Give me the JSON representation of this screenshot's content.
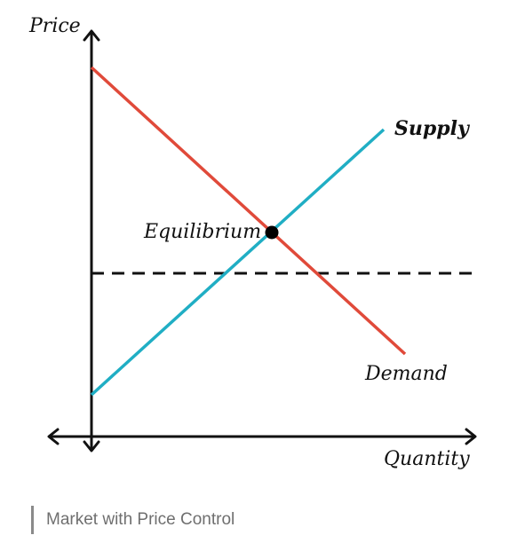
{
  "diagram": {
    "y_axis_label": "Price",
    "x_axis_label": "Quantity",
    "supply_label": "Supply",
    "demand_label": "Demand",
    "equilibrium_label": "Equilibrium",
    "colors": {
      "supply": "#20aec4",
      "demand": "#e04a3a",
      "axes": "#111111",
      "price_control": "#111111"
    },
    "price_control_line": "dashed"
  },
  "caption": {
    "text": "Market with Price Control"
  }
}
